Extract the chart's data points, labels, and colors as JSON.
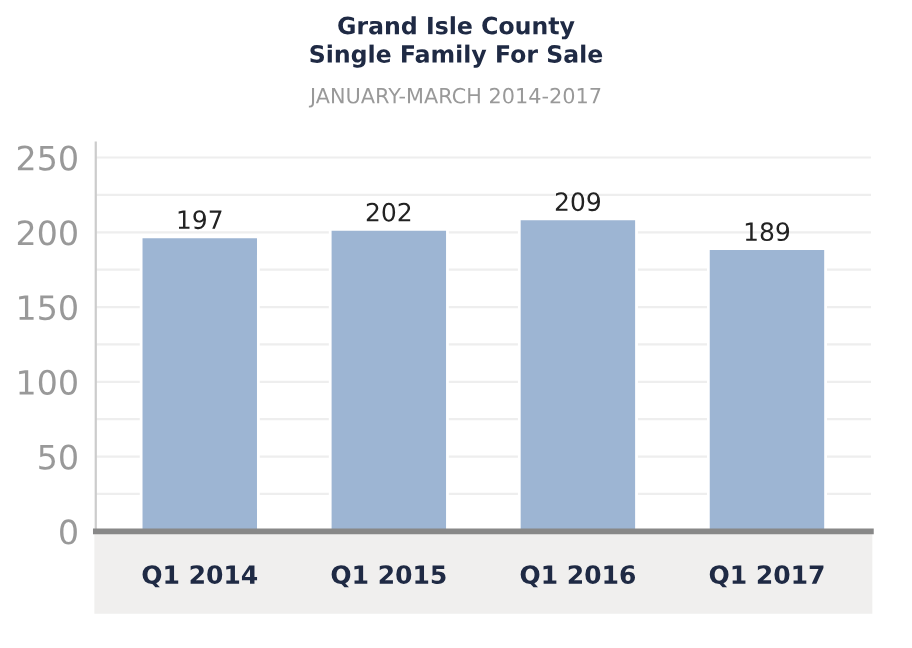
{
  "chart_data": {
    "type": "bar",
    "title": "Grand Isle County\nSingle Family For Sale",
    "subtitle": "JANUARY-MARCH 2014-2017",
    "categories": [
      "Q1 2014",
      "Q1 2015",
      "Q1 2016",
      "Q1 2017"
    ],
    "values": [
      197,
      202,
      209,
      189
    ],
    "color": "#9db5d3",
    "data_labels": true,
    "ylim": [
      0,
      260
    ],
    "yticks": [
      0,
      {
        "value": 25,
        "label": null
      },
      50,
      {
        "value": 75,
        "label": null
      },
      100,
      {
        "value": 125,
        "label": null
      },
      150,
      {
        "value": 175,
        "label": null
      },
      200,
      {
        "value": 225,
        "label": null
      },
      250
    ],
    "grid": "y"
  }
}
